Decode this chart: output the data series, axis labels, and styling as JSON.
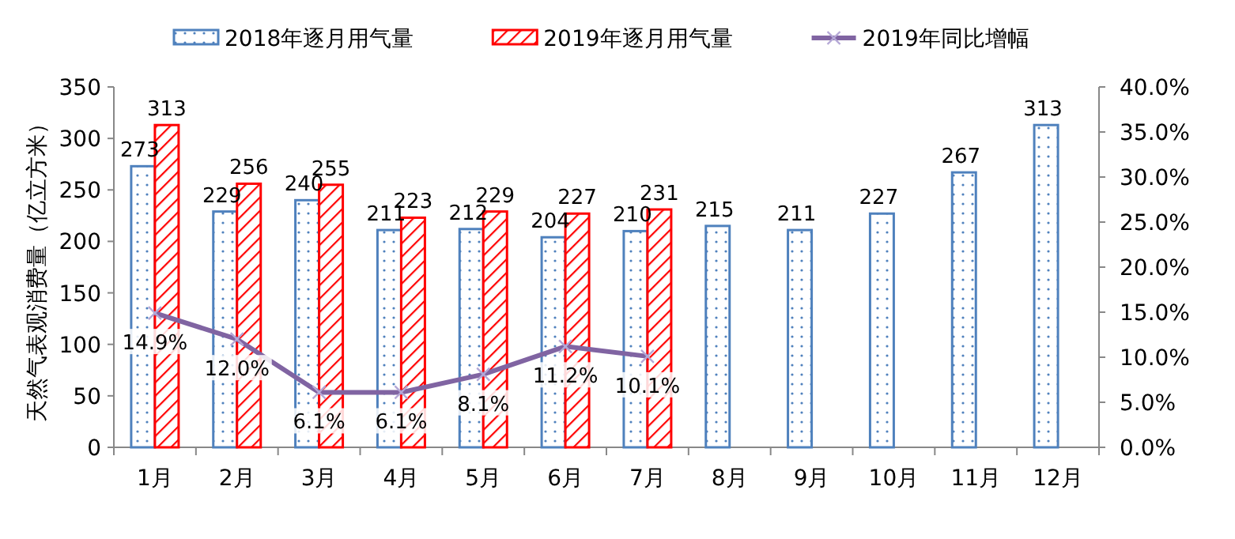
{
  "chart_data": {
    "type": "bar",
    "ylabel": "天然气表观消费量（亿立方米）",
    "categories": [
      "1月",
      "2月",
      "3月",
      "4月",
      "5月",
      "6月",
      "7月",
      "8月",
      "9月",
      "10月",
      "11月",
      "12月"
    ],
    "series": [
      {
        "name": "2018年逐月用气量",
        "color": "#4f81bd",
        "values": [
          273,
          229,
          240,
          211,
          212,
          204,
          210,
          215,
          211,
          227,
          267,
          313
        ],
        "value_labels": [
          "273",
          "229",
          "240",
          "211",
          "212",
          "204",
          "210",
          "215",
          "211",
          "227",
          "267",
          "313"
        ]
      },
      {
        "name": "2019年逐月用气量",
        "color": "#ff0000",
        "values": [
          313,
          256,
          255,
          223,
          229,
          227,
          231,
          null,
          null,
          null,
          null,
          null
        ],
        "value_labels": [
          "313",
          "256",
          "255",
          "223",
          "229",
          "227",
          "231",
          null,
          null,
          null,
          null,
          null
        ]
      },
      {
        "name": "2019年同比增幅",
        "type": "line",
        "axis": "y2",
        "color": "#8064a2",
        "values": [
          14.9,
          12.0,
          6.1,
          6.1,
          8.1,
          11.2,
          10.1,
          null,
          null,
          null,
          null,
          null
        ],
        "value_labels": [
          "14.9%",
          "12.0%",
          "6.1%",
          "6.1%",
          "8.1%",
          "11.2%",
          "10.1%",
          null,
          null,
          null,
          null,
          null
        ]
      }
    ],
    "ylim": [
      0,
      350
    ],
    "yticks": [
      0,
      50,
      100,
      150,
      200,
      250,
      300,
      350
    ],
    "y2lim": [
      0,
      40
    ],
    "y2ticks": [
      {
        "value": 0,
        "label": "0.0%"
      },
      {
        "value": 5,
        "label": "5.0%"
      },
      {
        "value": 10,
        "label": "10.0%"
      },
      {
        "value": 15,
        "label": "15.0%"
      },
      {
        "value": 20,
        "label": "20.0%"
      },
      {
        "value": 25,
        "label": "25.0%"
      },
      {
        "value": 30,
        "label": "30.0%"
      },
      {
        "value": 35,
        "label": "35.0%"
      },
      {
        "value": 40,
        "label": "40.0%"
      }
    ],
    "marker": "cross",
    "legend": "top",
    "grid": false
  }
}
